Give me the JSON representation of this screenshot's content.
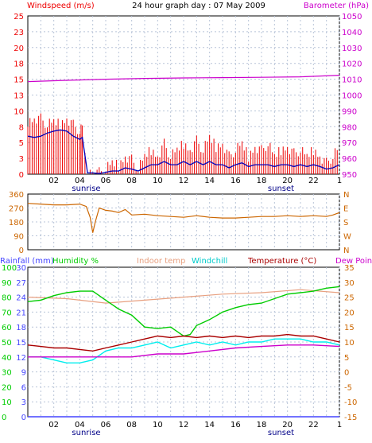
{
  "chart_data": [
    {
      "type": "line",
      "title": "24 hour graph day : 07 May 2009",
      "left_label": "Windspeed (m/s)",
      "right_label": "Barometer (hPa)",
      "x_ticks": [
        "02",
        "04",
        "06",
        "08",
        "10",
        "12",
        "14",
        "16",
        "18",
        "20",
        "22",
        "1"
      ],
      "sunrise_label": "sunrise",
      "sunset_label": "sunset",
      "left_ylim": [
        0,
        25
      ],
      "left_ticks": [
        "0",
        "3",
        "5",
        "8",
        "10",
        "13",
        "15",
        "18",
        "20",
        "23",
        "25"
      ],
      "right_ylim": [
        950,
        1050
      ],
      "right_ticks": [
        "950",
        "960",
        "970",
        "980",
        "990",
        "1000",
        "1010",
        "1020",
        "1030",
        "1040",
        "1050"
      ],
      "grid": true,
      "colors": {
        "gust": "#ee0000",
        "wind": "#0000bb",
        "barometer": "#cc00cc"
      },
      "series": [
        {
          "name": "Barometer (hPa)",
          "axis": "right",
          "x": [
            0,
            3,
            6,
            9,
            12,
            15,
            18,
            21,
            24
          ],
          "values": [
            1008.5,
            1009.3,
            1010.0,
            1010.5,
            1010.8,
            1011.0,
            1011.2,
            1011.5,
            1012.5
          ]
        },
        {
          "name": "Gust",
          "axis": "left",
          "x": [
            0,
            0.5,
            1,
            1.5,
            2,
            2.5,
            3,
            3.5,
            4,
            4.2,
            4.6,
            5,
            5.5,
            6,
            6.5,
            7,
            7.5,
            8,
            8.5,
            9,
            9.5,
            10,
            10.5,
            11,
            11.5,
            12,
            12.5,
            13,
            13.5,
            14,
            14.5,
            15,
            15.5,
            16,
            16.5,
            17,
            17.5,
            18,
            18.5,
            19,
            19.5,
            20,
            20.5,
            21,
            21.5,
            22,
            22.5,
            23,
            23.5,
            24
          ],
          "values": [
            8.5,
            9,
            9,
            8,
            8.5,
            8,
            9,
            8,
            7,
            7.5,
            0.5,
            0.5,
            0.5,
            1,
            2,
            1.5,
            3,
            2.5,
            1,
            3,
            4,
            3,
            5,
            3,
            4,
            5,
            4,
            5.5,
            4,
            6,
            4.5,
            5,
            3,
            4,
            5,
            3,
            4.5,
            4,
            5,
            3,
            4,
            4.5,
            3.5,
            4,
            3,
            4,
            3,
            2,
            3,
            4.5
          ]
        },
        {
          "name": "Windspeed",
          "axis": "left",
          "x": [
            0,
            0.5,
            1,
            1.5,
            2,
            2.5,
            3,
            3.5,
            4,
            4.2,
            4.6,
            5,
            5.5,
            6,
            6.5,
            7,
            7.5,
            8,
            8.5,
            9,
            9.5,
            10,
            10.5,
            11,
            11.5,
            12,
            12.5,
            13,
            13.5,
            14,
            14.5,
            15,
            15.5,
            16,
            16.5,
            17,
            17.5,
            18,
            18.5,
            19,
            19.5,
            20,
            20.5,
            21,
            21.5,
            22,
            22.5,
            23,
            23.5,
            24
          ],
          "values": [
            6,
            5.8,
            6,
            6.5,
            6.8,
            7,
            6.8,
            6,
            5.5,
            5.8,
            0.2,
            0.2,
            0.1,
            0.3,
            0.5,
            0.5,
            1,
            0.8,
            0.5,
            1,
            1.5,
            1.5,
            2,
            1.5,
            1.5,
            2,
            1.5,
            2,
            1.5,
            2,
            1.5,
            1.5,
            1,
            1.5,
            1.8,
            1.2,
            1.5,
            1.5,
            1.5,
            1.2,
            1.5,
            1.5,
            1.2,
            1.5,
            1.2,
            1.5,
            1.2,
            0.8,
            1,
            1.5
          ]
        }
      ]
    },
    {
      "type": "line",
      "ylim": [
        0,
        360
      ],
      "left_ticks": [
        "0",
        "90",
        "180",
        "270",
        "360"
      ],
      "right_ticks": [
        "N",
        "W",
        "S",
        "E",
        "N"
      ],
      "x_ticks": [
        "02",
        "04",
        "06",
        "08",
        "10",
        "12",
        "14",
        "16",
        "18",
        "20",
        "22",
        "1"
      ],
      "grid": true,
      "colors": {
        "direction": "#cc6600"
      },
      "series": [
        {
          "name": "Wind direction",
          "x": [
            0,
            1,
            2,
            3,
            4,
            4.5,
            4.8,
            5,
            5.2,
            5.5,
            6,
            6.5,
            7,
            7.5,
            8,
            9,
            10,
            11,
            12,
            13,
            14,
            15,
            16,
            17,
            18,
            19,
            20,
            21,
            22,
            23,
            23.5,
            24
          ],
          "values": [
            300,
            295,
            290,
            290,
            295,
            280,
            210,
            110,
            180,
            270,
            255,
            250,
            240,
            260,
            225,
            230,
            220,
            215,
            210,
            220,
            210,
            205,
            205,
            210,
            215,
            215,
            220,
            215,
            220,
            215,
            225,
            240
          ]
        }
      ]
    },
    {
      "type": "line",
      "legend": [
        "Rainfall (mm)",
        "Humidity %",
        "Indoor temp",
        "Windchill",
        "Temperature (°C)",
        "Dew Point"
      ],
      "x_ticks": [
        "02",
        "04",
        "06",
        "08",
        "10",
        "12",
        "14",
        "16",
        "18",
        "20",
        "22",
        "1"
      ],
      "sunrise_label": "sunrise",
      "sunset_label": "sunset",
      "rain_ticks": [
        "0",
        "3",
        "6",
        "9",
        "12",
        "15",
        "18",
        "21",
        "24",
        "27",
        "30"
      ],
      "humidity_ticks": [
        "0",
        "10",
        "20",
        "30",
        "40",
        "50",
        "60",
        "70",
        "80",
        "90",
        "100"
      ],
      "temp_ticks": [
        "-15",
        "-10",
        "-5",
        "0",
        "5",
        "10",
        "15",
        "20",
        "25",
        "30",
        "35"
      ],
      "temp_ylim": [
        -15,
        35
      ],
      "grid": true,
      "colors": {
        "rain": "#4444ff",
        "humidity": "#00cc00",
        "indoor": "#e8a080",
        "windchill": "#00eeee",
        "temperature": "#aa0000",
        "dewpoint": "#cc00cc"
      },
      "series": [
        {
          "name": "Humidity %",
          "axis": "humidity",
          "x": [
            0,
            1,
            2,
            3,
            4,
            5,
            5.5,
            6,
            7,
            8,
            9,
            10,
            11,
            12,
            12.5,
            13,
            14,
            15,
            16,
            17,
            18,
            19,
            20,
            21,
            22,
            23,
            24
          ],
          "values": [
            77,
            78,
            81,
            83,
            84,
            84,
            81,
            78,
            72,
            68,
            60,
            59,
            60,
            54,
            55,
            61,
            65,
            70,
            73,
            75,
            76,
            79,
            82,
            83,
            84,
            86,
            87
          ]
        },
        {
          "name": "Indoor temp",
          "axis": "temp",
          "x": [
            0,
            3,
            6,
            9,
            12,
            15,
            18,
            21,
            24
          ],
          "values": [
            25,
            24.5,
            23,
            24,
            25,
            26,
            26.5,
            27.5,
            26.5
          ]
        },
        {
          "name": "Windchill",
          "axis": "temp",
          "x": [
            0,
            1,
            2,
            3,
            4,
            5,
            6,
            7,
            8,
            9,
            10,
            11,
            12,
            13,
            14,
            15,
            16,
            17,
            18,
            19,
            20,
            21,
            22,
            23,
            24
          ],
          "values": [
            5,
            5,
            4,
            3,
            3,
            4,
            7,
            8,
            8,
            9,
            10,
            8,
            9,
            10,
            9,
            10,
            9,
            10,
            10,
            11,
            11,
            11,
            10,
            10,
            9
          ]
        },
        {
          "name": "Temperature (°C)",
          "axis": "temp",
          "x": [
            0,
            1,
            2,
            3,
            4,
            5,
            6,
            7,
            8,
            9,
            10,
            11,
            12,
            13,
            14,
            15,
            16,
            17,
            18,
            19,
            20,
            21,
            22,
            23,
            24
          ],
          "values": [
            9,
            8.5,
            8,
            8,
            7.5,
            7,
            8,
            9,
            10,
            11,
            12,
            11.5,
            12,
            11.5,
            12,
            11.5,
            12,
            11.5,
            12,
            12,
            12.5,
            12,
            12,
            11,
            10
          ]
        },
        {
          "name": "Dew Point",
          "axis": "temp",
          "x": [
            0,
            2,
            4,
            6,
            8,
            10,
            12,
            14,
            16,
            18,
            20,
            22,
            24
          ],
          "values": [
            5,
            5,
            5,
            5,
            5,
            6,
            6,
            7,
            8,
            8.5,
            9,
            9,
            8.5
          ]
        },
        {
          "name": "Rainfall (mm)",
          "axis": "rain",
          "x": [
            0,
            24
          ],
          "values": [
            0,
            0
          ]
        }
      ]
    }
  ]
}
